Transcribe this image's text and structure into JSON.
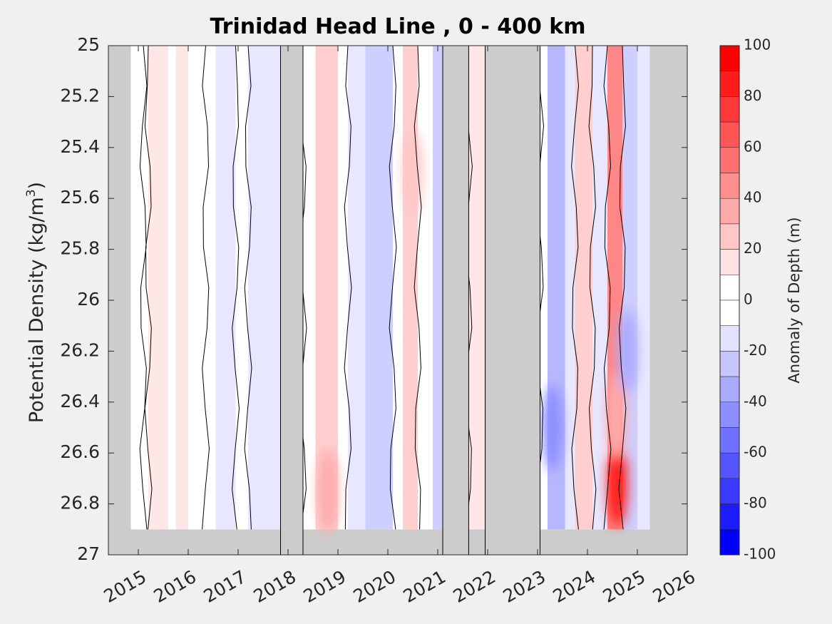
{
  "chart_data": {
    "type": "heatmap",
    "title": "Trinidad Head Line , 0 - 400 km",
    "ylabel_main": "Potential Density (kg/m",
    "ylabel_sup": "3",
    "ylabel_close": ")",
    "colorbar_label": "Anomaly of Depth (m)",
    "xlim": [
      2014.4,
      2026.0
    ],
    "ylim": [
      25,
      27
    ],
    "y_reversed": true,
    "x_ticks": [
      "2015",
      "2016",
      "2017",
      "2018",
      "2019",
      "2020",
      "2021",
      "2022",
      "2023",
      "2024",
      "2025",
      "2026"
    ],
    "y_ticks": [
      "25",
      "25.2",
      "25.4",
      "25.6",
      "25.8",
      "26",
      "26.2",
      "26.4",
      "26.6",
      "26.8",
      "27"
    ],
    "colorbar": {
      "range": [
        -100,
        100
      ],
      "step": 10,
      "tick_labels": [
        "100",
        "80",
        "60",
        "40",
        "20",
        "0",
        "-20",
        "-40",
        "-60",
        "-80",
        "-100"
      ],
      "colors": [
        "#ff0000",
        "#ff1c1c",
        "#ff3939",
        "#ff5555",
        "#ff7171",
        "#ff8e8e",
        "#ffaaaa",
        "#ffc6c6",
        "#ffe3e3",
        "#ffffff",
        "#ffffff",
        "#e3e3ff",
        "#c6c6ff",
        "#aaaaff",
        "#8e8eff",
        "#7171ff",
        "#5555ff",
        "#3939ff",
        "#1c1cff",
        "#0000ff"
      ]
    },
    "missing_color": "#cccccc",
    "data_coverage": {
      "x": [
        2014.85,
        2025.25
      ],
      "y_max": 26.9
    },
    "no_data_gaps": [
      [
        2017.85,
        2018.3
      ],
      [
        2021.1,
        2021.62
      ],
      [
        2021.95,
        2023.05
      ]
    ],
    "anomaly_bands": [
      {
        "x": [
          2014.9,
          2015.1
        ],
        "value": 8
      },
      {
        "x": [
          2015.1,
          2015.2
        ],
        "value": -5
      },
      {
        "x": [
          2015.2,
          2015.6
        ],
        "value": 12
      },
      {
        "x": [
          2015.6,
          2015.75
        ],
        "value": 5
      },
      {
        "x": [
          2015.75,
          2016.0
        ],
        "value": 18
      },
      {
        "x": [
          2016.0,
          2016.35
        ],
        "value": 6
      },
      {
        "x": [
          2016.35,
          2016.55
        ],
        "value": -3
      },
      {
        "x": [
          2016.55,
          2016.95
        ],
        "value": -14
      },
      {
        "x": [
          2016.95,
          2017.2
        ],
        "value": 5
      },
      {
        "x": [
          2017.2,
          2017.45
        ],
        "value": -12
      },
      {
        "x": [
          2017.45,
          2017.85
        ],
        "value": -18
      },
      {
        "x": [
          2018.3,
          2018.55
        ],
        "value": 3
      },
      {
        "x": [
          2018.55,
          2019.0
        ],
        "value": 25
      },
      {
        "x": [
          2019.0,
          2019.2
        ],
        "value": 5
      },
      {
        "x": [
          2019.2,
          2019.55
        ],
        "value": -12
      },
      {
        "x": [
          2019.55,
          2020.1
        ],
        "value": -25
      },
      {
        "x": [
          2020.1,
          2020.3
        ],
        "value": 5
      },
      {
        "x": [
          2020.3,
          2020.6
        ],
        "value": 22
      },
      {
        "x": [
          2020.6,
          2020.9
        ],
        "value": -8
      },
      {
        "x": [
          2020.9,
          2021.1
        ],
        "value": -22
      },
      {
        "x": [
          2021.62,
          2021.95
        ],
        "value": 12
      },
      {
        "x": [
          2023.05,
          2023.2
        ],
        "value": -8
      },
      {
        "x": [
          2023.2,
          2023.55
        ],
        "value": -35
      },
      {
        "x": [
          2023.55,
          2023.75
        ],
        "value": -10
      },
      {
        "x": [
          2023.75,
          2024.1
        ],
        "value": 22
      },
      {
        "x": [
          2024.1,
          2024.4
        ],
        "value": -18
      },
      {
        "x": [
          2024.4,
          2024.7
        ],
        "value": 55
      },
      {
        "x": [
          2024.7,
          2025.0
        ],
        "value": -28
      },
      {
        "x": [
          2025.0,
          2025.25
        ],
        "value": -12
      }
    ],
    "anomaly_blobs": [
      {
        "x": 2024.6,
        "y": 26.72,
        "value": 85
      },
      {
        "x": 2024.58,
        "y": 26.45,
        "value": 40
      },
      {
        "x": 2018.8,
        "y": 26.75,
        "value": 35
      },
      {
        "x": 2024.8,
        "y": 26.2,
        "value": -35
      },
      {
        "x": 2023.3,
        "y": 26.5,
        "value": -45
      },
      {
        "x": 2020.5,
        "y": 25.5,
        "value": 30
      }
    ]
  }
}
